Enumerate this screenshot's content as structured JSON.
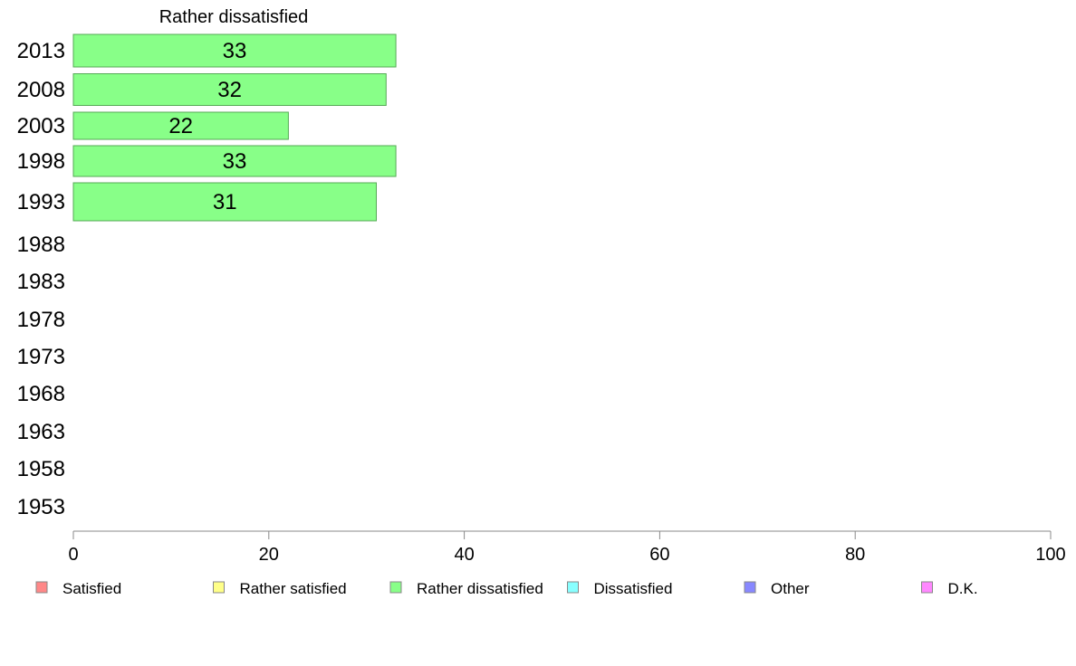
{
  "chart_data": {
    "type": "bar",
    "orientation": "horizontal",
    "title": "Rather dissatisfied",
    "categories": [
      "2013",
      "2008",
      "2003",
      "1998",
      "1993",
      "1988",
      "1983",
      "1978",
      "1973",
      "1968",
      "1963",
      "1958",
      "1953"
    ],
    "series": [
      {
        "name": "Rather dissatisfied",
        "color": "#88ff88",
        "values": [
          33,
          32,
          22,
          33,
          31,
          null,
          null,
          null,
          null,
          null,
          null,
          null,
          null
        ]
      }
    ],
    "xlim": [
      0,
      100
    ],
    "xticks": [
      "0",
      "20",
      "40",
      "60",
      "80",
      "100"
    ],
    "grid": false,
    "legend_position": "bottom",
    "legend": [
      {
        "label": "Satisfied",
        "color": "#ff8888"
      },
      {
        "label": "Rather satisfied",
        "color": "#ffff88"
      },
      {
        "label": "Rather dissatisfied",
        "color": "#88ff88"
      },
      {
        "label": "Dissatisfied",
        "color": "#88ffff"
      },
      {
        "label": "Other",
        "color": "#8888ff"
      },
      {
        "label": "D.K.",
        "color": "#ff88ff"
      }
    ]
  }
}
